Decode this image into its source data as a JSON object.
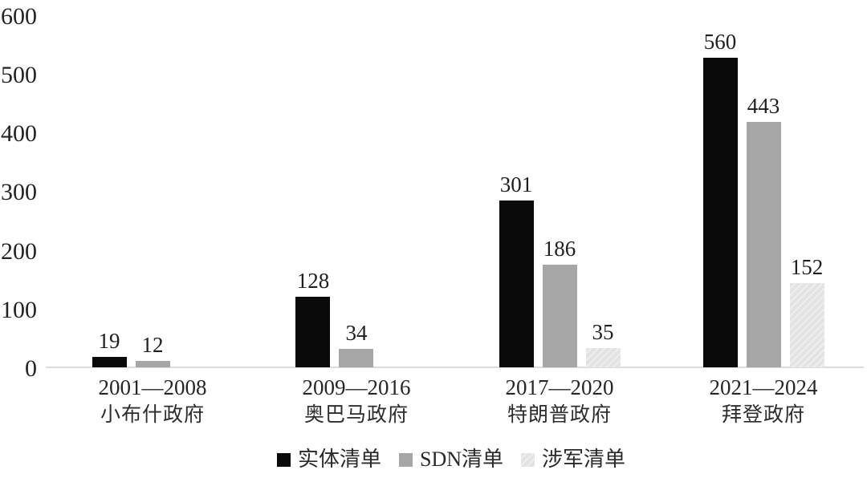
{
  "chart_data": {
    "type": "bar",
    "title": "",
    "categories": [
      {
        "period": "2001—2008",
        "government": "小布什政府"
      },
      {
        "period": "2009—2016",
        "government": "奥巴马政府"
      },
      {
        "period": "2017—2020",
        "government": "特朗普政府"
      },
      {
        "period": "2021—2024",
        "government": "拜登政府"
      }
    ],
    "series": [
      {
        "name": "实体清单",
        "pattern": "solid",
        "color": "#0a0a0a",
        "values": [
          19,
          128,
          301,
          560
        ]
      },
      {
        "name": "SDN清单",
        "pattern": "solid",
        "color": "#a6a6a6",
        "values": [
          12,
          34,
          186,
          443
        ]
      },
      {
        "name": "涉军清单",
        "pattern": "diagonal-hatch",
        "color": "#e3e3e3",
        "values": [
          0,
          0,
          35,
          152
        ]
      }
    ],
    "y_axis": {
      "min": 0,
      "max": 600,
      "tick_interval": 100,
      "tick_labels": [
        "0",
        "100",
        "200",
        "300",
        "400",
        "500",
        "600"
      ]
    },
    "data_labels_shown": true,
    "legend_position": "bottom",
    "grid": false
  },
  "colors": {
    "axis_line": "#dcdcdc",
    "hatch_base": "#e3e3e3",
    "hatch_stripe": "#efefef"
  }
}
